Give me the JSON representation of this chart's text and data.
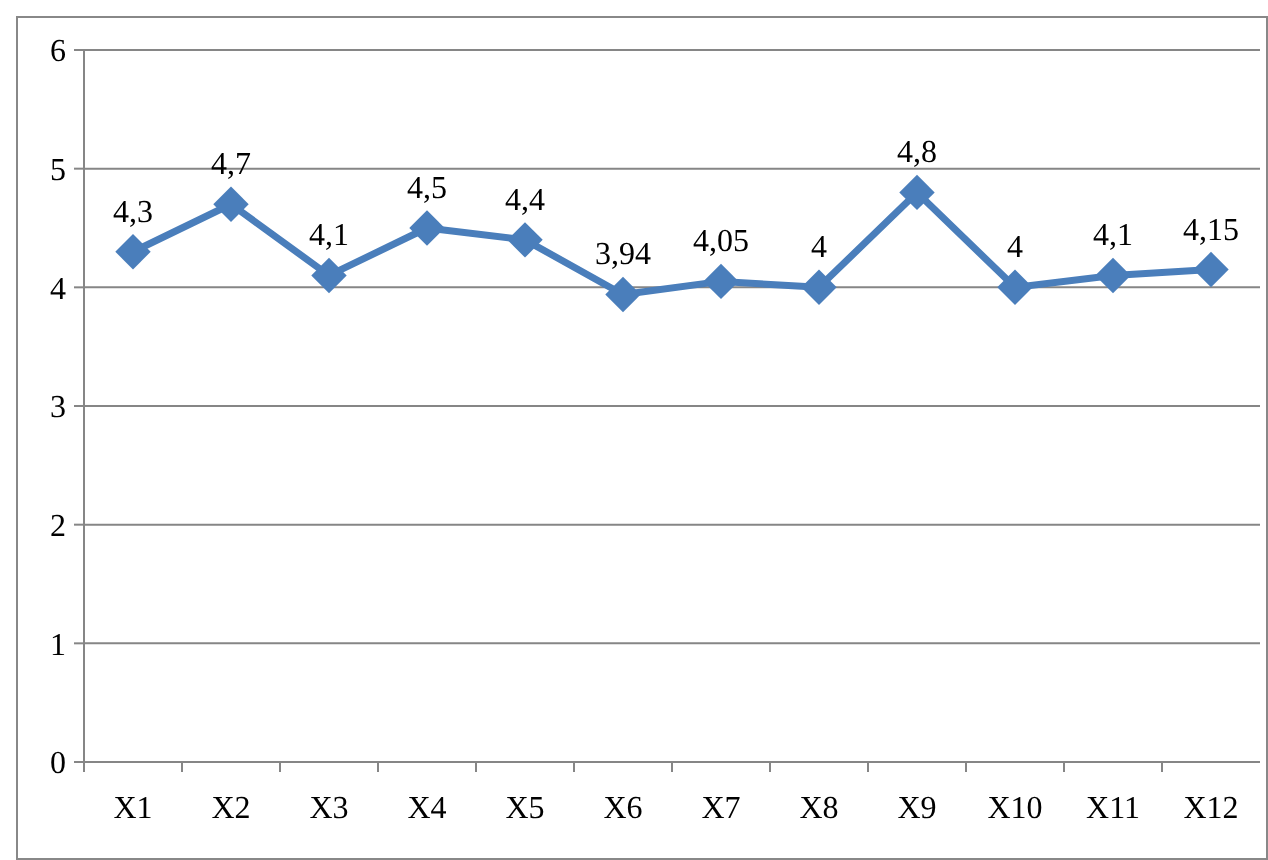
{
  "chart_data": {
    "type": "line",
    "categories": [
      "X1",
      "X2",
      "X3",
      "X4",
      "X5",
      "X6",
      "X7",
      "X8",
      "X9",
      "X10",
      "X11",
      "X12"
    ],
    "series": [
      {
        "color": "#4a7ebb",
        "values": [
          4.3,
          4.7,
          4.1,
          4.5,
          4.4,
          3.94,
          4.05,
          4,
          4.8,
          4,
          4.1,
          4.15
        ],
        "value_labels": [
          "4,3",
          "4,7",
          "4,1",
          "4,5",
          "4,4",
          "3,94",
          "4,05",
          "4",
          "4,8",
          "4",
          "4,1",
          "4,15"
        ]
      }
    ],
    "ylim": [
      0,
      6
    ],
    "yticks": [
      0,
      1,
      2,
      3,
      4,
      5,
      6
    ],
    "grid": "y",
    "marker": "diamond",
    "line_style": "solid"
  }
}
